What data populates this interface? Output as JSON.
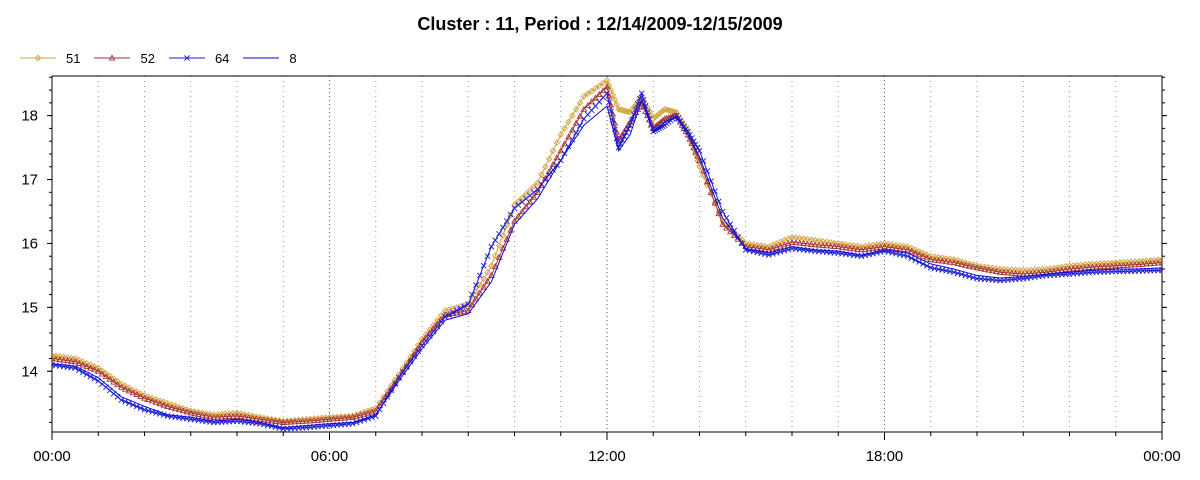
{
  "chart_data": {
    "type": "line",
    "title": "Cluster : 11, Period : 12/14/2009-12/15/2009",
    "xlabel": "",
    "ylabel": "",
    "x_ticks": [
      "00:00",
      "06:00",
      "12:00",
      "18:00",
      "00:00"
    ],
    "y_ticks": [
      "14",
      "15",
      "16",
      "17",
      "18"
    ],
    "xlim": [
      0,
      24
    ],
    "ylim": [
      13.05,
      18.62
    ],
    "grid": "vertical dotted lines",
    "legend_position": "top-left",
    "series": [
      {
        "name": "51",
        "color": "#d4a03a",
        "marker": "diamond",
        "x": [
          0,
          0.5,
          1,
          1.5,
          2,
          2.5,
          3,
          3.5,
          4,
          4.5,
          5,
          5.5,
          6,
          6.5,
          7,
          7.5,
          8,
          8.5,
          9,
          9.5,
          10,
          10.5,
          11,
          11.5,
          12,
          12.25,
          12.5,
          12.75,
          13,
          13.25,
          13.5,
          13.75,
          14,
          14.5,
          15,
          15.5,
          16,
          16.5,
          17,
          17.5,
          18,
          18.5,
          19,
          19.5,
          20,
          20.5,
          21,
          21.5,
          22,
          22.5,
          23,
          23.5,
          24
        ],
        "y": [
          14.25,
          14.2,
          14.05,
          13.8,
          13.62,
          13.5,
          13.38,
          13.32,
          13.35,
          13.28,
          13.22,
          13.25,
          13.28,
          13.3,
          13.42,
          13.95,
          14.5,
          14.95,
          15.05,
          15.65,
          16.6,
          16.95,
          17.7,
          18.3,
          18.55,
          18.1,
          18.05,
          18.3,
          17.95,
          18.1,
          18.05,
          17.75,
          17.2,
          16.35,
          16,
          15.95,
          16.1,
          16.05,
          16,
          15.95,
          16,
          15.95,
          15.8,
          15.75,
          15.65,
          15.6,
          15.58,
          15.6,
          15.65,
          15.68,
          15.7,
          15.72,
          15.75
        ]
      },
      {
        "name": "52",
        "color": "#a83232",
        "marker": "triangle",
        "x": [
          0,
          0.5,
          1,
          1.5,
          2,
          2.5,
          3,
          3.5,
          4,
          4.5,
          5,
          5.5,
          6,
          6.5,
          7,
          7.5,
          8,
          8.5,
          9,
          9.5,
          10,
          10.5,
          11,
          11.5,
          12,
          12.25,
          12.5,
          12.75,
          13,
          13.25,
          13.5,
          13.75,
          14,
          14.5,
          15,
          15.5,
          16,
          16.5,
          17,
          17.5,
          18,
          18.5,
          19,
          19.5,
          20,
          20.5,
          21,
          21.5,
          22,
          22.5,
          23,
          23.5,
          24
        ],
        "y": [
          14.2,
          14.15,
          14,
          13.75,
          13.58,
          13.45,
          13.35,
          13.28,
          13.3,
          13.25,
          13.2,
          13.22,
          13.25,
          13.28,
          13.38,
          13.9,
          14.45,
          14.88,
          14.95,
          15.5,
          16.35,
          16.8,
          17.45,
          18.1,
          18.45,
          17.6,
          17.9,
          18.2,
          17.8,
          17.95,
          18,
          17.7,
          17.3,
          16.3,
          15.95,
          15.9,
          16.02,
          15.98,
          15.95,
          15.9,
          15.95,
          15.9,
          15.75,
          15.7,
          15.62,
          15.55,
          15.52,
          15.55,
          15.6,
          15.63,
          15.65,
          15.67,
          15.7
        ]
      },
      {
        "name": "64",
        "color": "#1b1bd4",
        "marker": "x",
        "x": [
          0,
          0.5,
          1,
          1.5,
          2,
          2.5,
          3,
          3.5,
          4,
          4.5,
          5,
          5.5,
          6,
          6.5,
          7,
          7.5,
          8,
          8.5,
          9,
          9.5,
          10,
          10.5,
          11,
          11.5,
          12,
          12.25,
          12.5,
          12.75,
          13,
          13.25,
          13.5,
          13.75,
          14,
          14.5,
          15,
          15.5,
          16,
          16.5,
          17,
          17.5,
          18,
          18.5,
          19,
          19.5,
          20,
          20.5,
          21,
          21.5,
          22,
          22.5,
          23,
          23.5,
          24
        ],
        "y": [
          14.1,
          14.05,
          13.85,
          13.55,
          13.4,
          13.3,
          13.25,
          13.2,
          13.22,
          13.18,
          13.1,
          13.12,
          13.15,
          13.18,
          13.3,
          13.9,
          14.4,
          14.85,
          15.05,
          15.95,
          16.55,
          16.85,
          17.3,
          17.95,
          18.35,
          17.5,
          17.85,
          18.35,
          17.75,
          17.85,
          18,
          17.75,
          17.45,
          16.5,
          15.9,
          15.82,
          15.92,
          15.88,
          15.85,
          15.8,
          15.88,
          15.8,
          15.62,
          15.55,
          15.45,
          15.42,
          15.45,
          15.5,
          15.52,
          15.55,
          15.56,
          15.57,
          15.58
        ]
      },
      {
        "name": "8",
        "color": "#0a0ad8",
        "marker": "none",
        "x": [
          0,
          0.5,
          1,
          1.5,
          2,
          2.5,
          3,
          3.5,
          4,
          4.5,
          5,
          5.5,
          6,
          6.5,
          7,
          7.5,
          8,
          8.5,
          9,
          9.5,
          10,
          10.5,
          11,
          11.5,
          12,
          12.25,
          12.5,
          12.75,
          13,
          13.25,
          13.5,
          13.75,
          14,
          14.5,
          15,
          15.5,
          16,
          16.5,
          17,
          17.5,
          18,
          18.5,
          19,
          19.5,
          20,
          20.5,
          21,
          21.5,
          22,
          22.5,
          23,
          23.5,
          24
        ],
        "y": [
          14.12,
          14.08,
          13.9,
          13.6,
          13.45,
          13.32,
          13.28,
          13.22,
          13.25,
          13.2,
          13.12,
          13.15,
          13.18,
          13.2,
          13.32,
          13.85,
          14.35,
          14.8,
          14.9,
          15.4,
          16.3,
          16.7,
          17.3,
          17.85,
          18.15,
          17.45,
          17.7,
          18.25,
          17.75,
          17.9,
          17.98,
          17.7,
          17.35,
          16.4,
          15.92,
          15.85,
          15.95,
          15.9,
          15.88,
          15.82,
          15.9,
          15.85,
          15.68,
          15.6,
          15.5,
          15.46,
          15.48,
          15.52,
          15.55,
          15.58,
          15.6,
          15.6,
          15.62
        ]
      }
    ]
  }
}
